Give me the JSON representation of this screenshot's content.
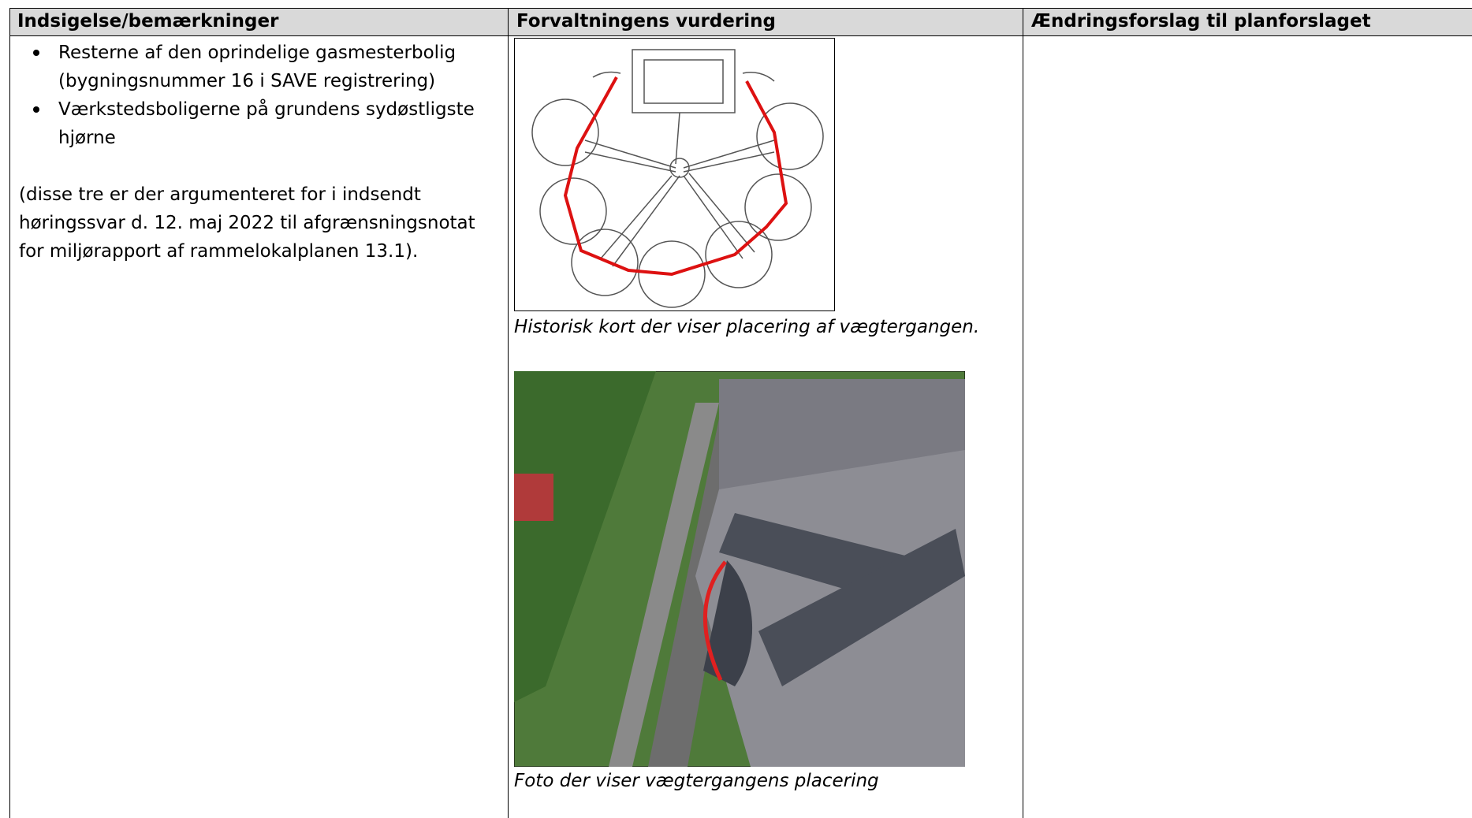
{
  "table": {
    "headers": [
      "Indsigelse/bemærkninger",
      "Forvaltningens vurdering",
      "Ændringsforslag til planforslaget"
    ],
    "rows": [
      {
        "objection": {
          "bullets": [
            "Resterne af den oprindelige gasmesterbolig (bygningsnummer 16 i SAVE registrering)",
            "Værkstedsboligerne på grundens sydøstligste hjørne"
          ],
          "note": "(disse tre er der argumenteret for i indsendt høringssvar d. 12. maj 2022 til afgrænsningsnotat for miljørapport af rammelokalplanen 13.1)."
        },
        "assessment": {
          "figures": [
            {
              "caption": "Historisk kort der viser placering af vægtergangen."
            },
            {
              "caption": "Foto der viser vægtergangens placering"
            }
          ]
        }
      }
    ]
  }
}
